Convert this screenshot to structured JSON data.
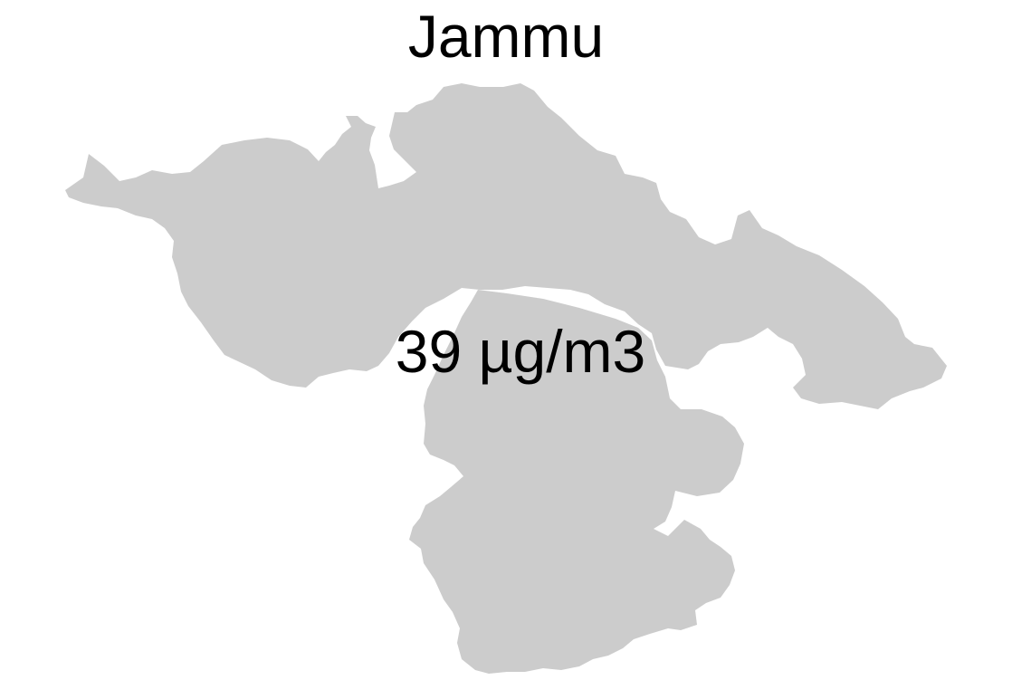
{
  "map": {
    "title": "Jammu",
    "value_label": "39 µg/m3",
    "region_fill": "#cccccc",
    "background": "#ffffff"
  }
}
